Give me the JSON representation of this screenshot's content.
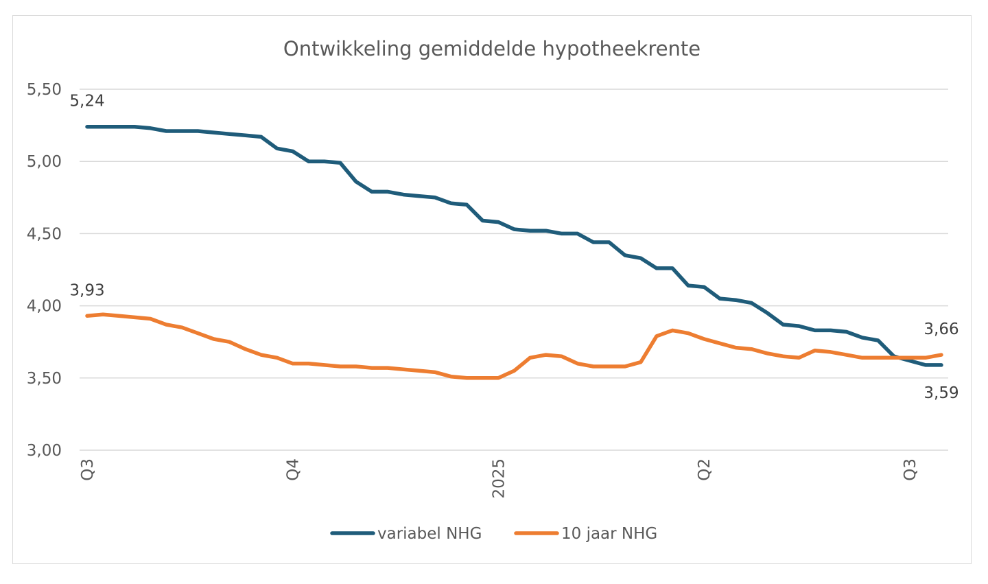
{
  "chart_data": {
    "type": "line",
    "title": "Ontwikkeling gemiddelde hypotheekrente",
    "xlabel": "",
    "ylabel": "",
    "ylim": [
      3.0,
      5.5
    ],
    "yticks": [
      "3,00",
      "3,50",
      "4,00",
      "4,50",
      "5,00",
      "5,50"
    ],
    "ytick_values": [
      3.0,
      3.5,
      4.0,
      4.5,
      5.0,
      5.5
    ],
    "grid": true,
    "legend_position": "bottom",
    "x_tick_labels": [
      {
        "index": 0,
        "label": "Q3"
      },
      {
        "index": 13,
        "label": "Q4"
      },
      {
        "index": 26,
        "label": "2025"
      },
      {
        "index": 39,
        "label": "Q2"
      },
      {
        "index": 52,
        "label": "Q3"
      }
    ],
    "point_count": 55,
    "series": [
      {
        "name": "variabel NHG",
        "color": "#1f5c7a",
        "values": [
          5.24,
          5.24,
          5.24,
          5.24,
          5.23,
          5.21,
          5.21,
          5.21,
          5.2,
          5.19,
          5.18,
          5.17,
          5.09,
          5.07,
          5.0,
          5.0,
          4.99,
          4.86,
          4.79,
          4.79,
          4.77,
          4.76,
          4.75,
          4.71,
          4.7,
          4.59,
          4.58,
          4.53,
          4.52,
          4.52,
          4.5,
          4.5,
          4.44,
          4.44,
          4.35,
          4.33,
          4.26,
          4.26,
          4.14,
          4.13,
          4.05,
          4.04,
          4.02,
          3.95,
          3.87,
          3.86,
          3.83,
          3.83,
          3.82,
          3.78,
          3.76,
          3.65,
          3.62,
          3.59,
          3.59
        ]
      },
      {
        "name": "10 jaar NHG",
        "color": "#ed7d31",
        "values": [
          3.93,
          3.94,
          3.93,
          3.92,
          3.91,
          3.87,
          3.85,
          3.81,
          3.77,
          3.75,
          3.7,
          3.66,
          3.64,
          3.6,
          3.6,
          3.59,
          3.58,
          3.58,
          3.57,
          3.57,
          3.56,
          3.55,
          3.54,
          3.51,
          3.5,
          3.5,
          3.5,
          3.55,
          3.64,
          3.66,
          3.65,
          3.6,
          3.58,
          3.58,
          3.58,
          3.61,
          3.79,
          3.83,
          3.81,
          3.77,
          3.74,
          3.71,
          3.7,
          3.67,
          3.65,
          3.64,
          3.69,
          3.68,
          3.66,
          3.64,
          3.64,
          3.64,
          3.64,
          3.64,
          3.66
        ]
      }
    ],
    "data_labels": [
      {
        "series": 0,
        "index": 0,
        "text": "5,24",
        "placement": "above"
      },
      {
        "series": 1,
        "index": 0,
        "text": "3,93",
        "placement": "above"
      },
      {
        "series": 1,
        "index": 54,
        "text": "3,66",
        "placement": "above"
      },
      {
        "series": 0,
        "index": 54,
        "text": "3,59",
        "placement": "below"
      }
    ]
  }
}
